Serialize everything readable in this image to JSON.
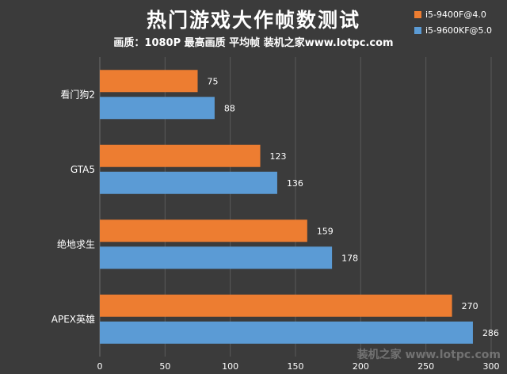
{
  "chart_data": {
    "type": "bar",
    "orientation": "horizontal",
    "title": "热门游戏大作帧数测试",
    "subtitle": "画质：1080P 最高画质 平均帧 装机之家www.lotpc.com",
    "categories": [
      "看门狗2",
      "GTA5",
      "绝地求生",
      "APEX英雄"
    ],
    "series": [
      {
        "name": "i5-9400F@4.0",
        "values": [
          75,
          123,
          159,
          270
        ],
        "color": "#ed7d31"
      },
      {
        "name": "i5-9600KF@5.0",
        "values": [
          88,
          136,
          178,
          286
        ],
        "color": "#5b9bd5"
      }
    ],
    "xlim": [
      0,
      300
    ],
    "xticks": [
      0,
      50,
      100,
      150,
      200,
      250,
      300
    ],
    "grid": "vertical",
    "legend_position": "top-right",
    "watermark": "装机之家 www.lotpc.com"
  }
}
